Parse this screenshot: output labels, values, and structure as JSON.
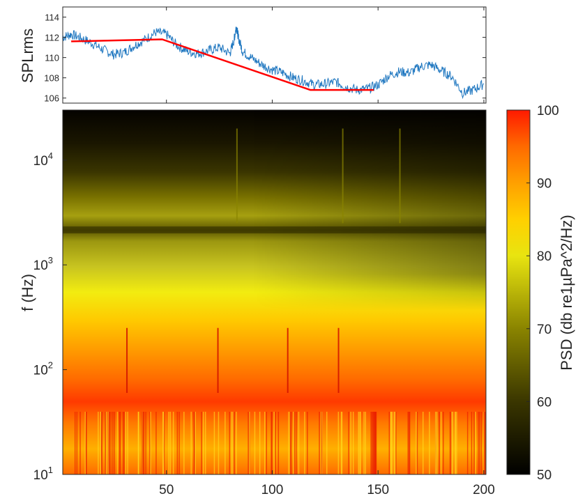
{
  "chart_data": [
    {
      "type": "line",
      "ylabel": "SPLrms",
      "xlim": [
        1,
        201
      ],
      "ylim": [
        105.5,
        115
      ],
      "yticks": [
        106,
        108,
        110,
        112,
        114
      ],
      "xticks": [
        50,
        100,
        150,
        200
      ],
      "series": [
        {
          "color": "#1f77c0",
          "x": [
            1,
            5,
            10,
            15,
            20,
            25,
            30,
            35,
            40,
            45,
            50,
            55,
            60,
            65,
            70,
            75,
            80,
            82,
            83,
            84,
            86,
            90,
            95,
            100,
            105,
            110,
            115,
            120,
            125,
            130,
            135,
            140,
            145,
            150,
            155,
            160,
            165,
            170,
            175,
            180,
            185,
            190,
            195,
            200
          ],
          "y": [
            112,
            112.3,
            111.9,
            111.4,
            110.8,
            110.3,
            110.5,
            111.2,
            111.8,
            112.5,
            112.3,
            111.2,
            110.6,
            110.4,
            110.7,
            111,
            110.4,
            111.8,
            113.1,
            112,
            110.6,
            110,
            109.3,
            108.8,
            108.5,
            108,
            107.7,
            107.3,
            107.4,
            107.6,
            107.1,
            106.8,
            106.9,
            107.3,
            108.2,
            108.6,
            108.5,
            109.1,
            109.3,
            108.7,
            108.1,
            106.5,
            106.8,
            107.4
          ]
        },
        {
          "color": "#ff0000",
          "x": [
            5,
            48,
            118,
            148
          ],
          "y": [
            111.6,
            111.8,
            106.8,
            106.8
          ]
        }
      ]
    },
    {
      "type": "heatmap",
      "ylabel": "f (Hz)",
      "yscale": "log",
      "ylim": [
        10,
        30000
      ],
      "xlim": [
        1,
        201
      ],
      "xticks": [
        50,
        100,
        150,
        200
      ],
      "yticks": [
        {
          "value": 10,
          "base": "10",
          "exp": "1"
        },
        {
          "value": 100,
          "base": "10",
          "exp": "2"
        },
        {
          "value": 1000,
          "base": "10",
          "exp": "3"
        },
        {
          "value": 10000,
          "base": "10",
          "exp": "4"
        }
      ],
      "colorbar": {
        "label": "PSD (db re1µPa^2/Hz)",
        "range": [
          50,
          100
        ],
        "ticks": [
          50,
          60,
          70,
          80,
          90,
          100
        ],
        "colormap": "black-yellow-red"
      }
    }
  ]
}
